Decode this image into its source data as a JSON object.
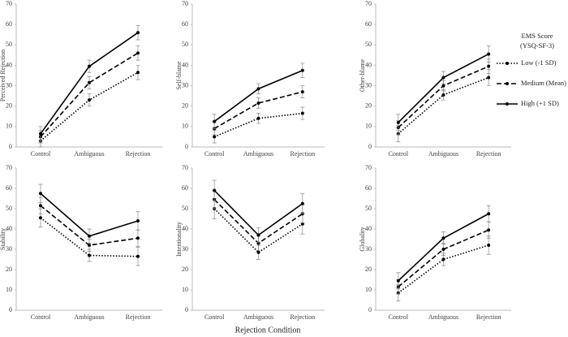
{
  "figure": {
    "xlabel": "Rejection Condition",
    "legend_title": [
      "EMS Score",
      "(YSQ-SF-3)"
    ]
  },
  "chart_data": [
    {
      "type": "line",
      "ylabel": "Perceived Rejection",
      "categories": [
        "Control",
        "Ambiguous",
        "Rejection"
      ],
      "ylim": [
        0,
        70
      ],
      "yticks": [
        0,
        10,
        20,
        30,
        40,
        50,
        60,
        70
      ],
      "series": [
        {
          "name": "Low (-1 SD)",
          "color": "#000000",
          "dash": "dotted",
          "values": [
            3,
            23,
            36.5
          ],
          "errors": [
            3,
            3,
            3.5
          ]
        },
        {
          "name": "Medium (Mean)",
          "color": "#000000",
          "dash": "dashed",
          "values": [
            5,
            31.5,
            46
          ],
          "errors": [
            3,
            3,
            3.5
          ]
        },
        {
          "name": "High (+1 SD)",
          "color": "#000000",
          "dash": "solid",
          "values": [
            6.5,
            39.5,
            56
          ],
          "errors": [
            3.5,
            3,
            3.5
          ]
        }
      ]
    },
    {
      "type": "line",
      "ylabel": "Self-blame",
      "categories": [
        "Control",
        "Ambiguous",
        "Rejection"
      ],
      "ylim": [
        0,
        70
      ],
      "yticks": [
        0,
        10,
        20,
        30,
        40,
        50,
        60,
        70
      ],
      "series": [
        {
          "name": "Low (-1 SD)",
          "color": "#000000",
          "dash": "dotted",
          "values": [
            5,
            14,
            16.5
          ],
          "errors": [
            3,
            2.5,
            3
          ]
        },
        {
          "name": "Medium (Mean)",
          "color": "#000000",
          "dash": "dashed",
          "values": [
            9,
            21.5,
            27
          ],
          "errors": [
            3,
            2.5,
            3
          ]
        },
        {
          "name": "High (+1 SD)",
          "color": "#000000",
          "dash": "solid",
          "values": [
            12.5,
            28.5,
            37.5
          ],
          "errors": [
            3.5,
            2.5,
            3.5
          ]
        }
      ]
    },
    {
      "type": "line",
      "ylabel": "Other-blame",
      "categories": [
        "Control",
        "Ambiguous",
        "Rejection"
      ],
      "ylim": [
        0,
        70
      ],
      "yticks": [
        0,
        10,
        20,
        30,
        40,
        50,
        60,
        70
      ],
      "series": [
        {
          "name": "Low (-1 SD)",
          "color": "#000000",
          "dash": "dotted",
          "values": [
            6.5,
            25.5,
            34
          ],
          "errors": [
            4,
            2.5,
            4
          ]
        },
        {
          "name": "Medium (Mean)",
          "color": "#000000",
          "dash": "dashed",
          "values": [
            9.5,
            30,
            39.5
          ],
          "errors": [
            3.5,
            2.5,
            3.5
          ]
        },
        {
          "name": "High (+1 SD)",
          "color": "#000000",
          "dash": "solid",
          "values": [
            12,
            34,
            45.5
          ],
          "errors": [
            4,
            3,
            4
          ]
        }
      ]
    },
    {
      "type": "line",
      "ylabel": "Stability",
      "categories": [
        "Control",
        "Ambiguous",
        "Rejection"
      ],
      "ylim": [
        0,
        70
      ],
      "yticks": [
        0,
        10,
        20,
        30,
        40,
        50,
        60,
        70
      ],
      "series": [
        {
          "name": "Low (-1 SD)",
          "color": "#000000",
          "dash": "dotted",
          "values": [
            45.5,
            27,
            26.5
          ],
          "errors": [
            4.5,
            3,
            4.5
          ]
        },
        {
          "name": "Medium (Mean)",
          "color": "#000000",
          "dash": "dashed",
          "values": [
            51.5,
            32,
            35.5
          ],
          "errors": [
            4,
            3,
            4
          ]
        },
        {
          "name": "High (+1 SD)",
          "color": "#000000",
          "dash": "solid",
          "values": [
            57.5,
            36.5,
            44
          ],
          "errors": [
            4.5,
            3.5,
            4.5
          ]
        }
      ]
    },
    {
      "type": "line",
      "ylabel": "Intentionality",
      "categories": [
        "Control",
        "Ambiguous",
        "Rejection"
      ],
      "ylim": [
        0,
        70
      ],
      "yticks": [
        0,
        10,
        20,
        30,
        40,
        50,
        60,
        70
      ],
      "series": [
        {
          "name": "Low (-1 SD)",
          "color": "#000000",
          "dash": "dotted",
          "values": [
            50,
            28.5,
            42.5
          ],
          "errors": [
            5,
            3.5,
            5
          ]
        },
        {
          "name": "Medium (Mean)",
          "color": "#000000",
          "dash": "dashed",
          "values": [
            54.5,
            33,
            47.5
          ],
          "errors": [
            4.5,
            3.5,
            4.5
          ]
        },
        {
          "name": "High (+1 SD)",
          "color": "#000000",
          "dash": "solid",
          "values": [
            59,
            37,
            52.5
          ],
          "errors": [
            5,
            3.5,
            5
          ]
        }
      ]
    },
    {
      "type": "line",
      "ylabel": "Globality",
      "categories": [
        "Control",
        "Ambiguous",
        "Rejection"
      ],
      "ylim": [
        0,
        70
      ],
      "yticks": [
        0,
        10,
        20,
        30,
        40,
        50,
        60,
        70
      ],
      "series": [
        {
          "name": "Low (-1 SD)",
          "color": "#000000",
          "dash": "dotted",
          "values": [
            8.5,
            25,
            32
          ],
          "errors": [
            4,
            3,
            4.5
          ]
        },
        {
          "name": "Medium (Mean)",
          "color": "#000000",
          "dash": "dashed",
          "values": [
            11.5,
            30,
            39.5
          ],
          "errors": [
            3.5,
            3,
            4
          ]
        },
        {
          "name": "High (+1 SD)",
          "color": "#000000",
          "dash": "solid",
          "values": [
            14.5,
            35.5,
            47.5
          ],
          "errors": [
            4,
            3,
            4
          ]
        }
      ]
    }
  ]
}
